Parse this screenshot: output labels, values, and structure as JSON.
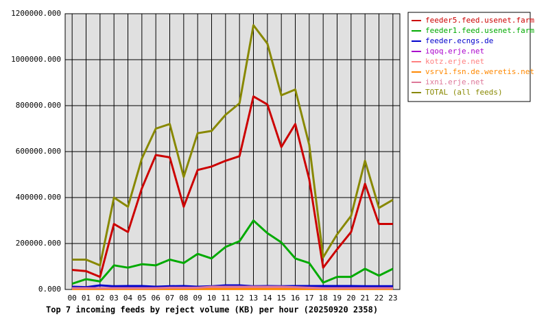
{
  "chart_data": {
    "type": "line",
    "title": "Top 7 incoming feeds by reject volume (KB) per hour (20250920 2358)",
    "categories": [
      "00",
      "01",
      "02",
      "03",
      "04",
      "05",
      "06",
      "07",
      "08",
      "09",
      "10",
      "11",
      "12",
      "13",
      "14",
      "15",
      "16",
      "17",
      "18",
      "19",
      "20",
      "21",
      "22",
      "23"
    ],
    "ylim": [
      0,
      1200000
    ],
    "yticks": [
      {
        "value": 0,
        "label": "0.000"
      },
      {
        "value": 200000,
        "label": "200000.000"
      },
      {
        "value": 400000,
        "label": "400000.000"
      },
      {
        "value": 600000,
        "label": "600000.000"
      },
      {
        "value": 800000,
        "label": "800000.000"
      },
      {
        "value": 1000000,
        "label": "1000000.000"
      },
      {
        "value": 1200000,
        "label": "1200000.000"
      }
    ],
    "grid": true,
    "legend": "right",
    "series": [
      {
        "name": "feeder5.feed.usenet.farm",
        "color": "#cc0000",
        "values": [
          85000,
          80000,
          55000,
          285000,
          250000,
          440000,
          585000,
          575000,
          360000,
          520000,
          535000,
          560000,
          580000,
          840000,
          805000,
          620000,
          720000,
          480000,
          95000,
          175000,
          250000,
          460000,
          285000,
          285000
        ]
      },
      {
        "name": "feeder1.feed.usenet.farm",
        "color": "#00aa00",
        "values": [
          25000,
          45000,
          35000,
          105000,
          95000,
          110000,
          105000,
          130000,
          115000,
          155000,
          135000,
          185000,
          210000,
          300000,
          245000,
          205000,
          135000,
          115000,
          30000,
          55000,
          55000,
          90000,
          60000,
          90000
        ]
      },
      {
        "name": "feeder.ecngs.de",
        "color": "#0000cc",
        "values": [
          12000,
          10000,
          18000,
          14000,
          15000,
          15000,
          12000,
          14000,
          15000,
          12000,
          14000,
          18000,
          18000,
          14000,
          15000,
          14000,
          15000,
          15000,
          15000,
          15000,
          15000,
          14000,
          14000,
          14000
        ]
      },
      {
        "name": "iqoq.erje.net",
        "color": "#aa00cc",
        "values": [
          3000,
          3000,
          3000,
          3000,
          3000,
          3000,
          3000,
          3000,
          3000,
          3000,
          3000,
          3000,
          3000,
          3000,
          3000,
          3000,
          3000,
          3000,
          3000,
          3000,
          3000,
          3000,
          3000,
          3000
        ]
      },
      {
        "name": "kotz.erje.net",
        "color": "#ff8080",
        "values": [
          5000,
          5000,
          5000,
          5000,
          5000,
          5000,
          5000,
          5000,
          5000,
          5000,
          5000,
          5000,
          5000,
          5000,
          5000,
          5000,
          5000,
          5000,
          5000,
          5000,
          5000,
          5000,
          5000,
          5000
        ]
      },
      {
        "name": "vsrv1.fsn.de.weretis.net",
        "color": "#ff8800",
        "values": [
          2000,
          2000,
          2000,
          2000,
          2000,
          2000,
          2000,
          2000,
          2000,
          2000,
          2000,
          2000,
          2000,
          2000,
          2000,
          2000,
          2000,
          2000,
          2000,
          2000,
          2000,
          2000,
          2000,
          2000
        ]
      },
      {
        "name": "ixni.erje.net",
        "color": "#dd7799",
        "values": [
          6000,
          6000,
          6000,
          6000,
          6000,
          6000,
          6000,
          8000,
          8000,
          8000,
          12000,
          12000,
          12000,
          12000,
          12000,
          12000,
          10000,
          8000,
          6000,
          6000,
          6000,
          6000,
          6000,
          6000
        ]
      },
      {
        "name": "TOTAL (all feeds)",
        "color": "#888800",
        "values": [
          130000,
          130000,
          105000,
          400000,
          360000,
          570000,
          700000,
          720000,
          490000,
          680000,
          690000,
          760000,
          810000,
          1150000,
          1070000,
          845000,
          870000,
          630000,
          140000,
          240000,
          320000,
          560000,
          355000,
          390000
        ]
      }
    ]
  }
}
